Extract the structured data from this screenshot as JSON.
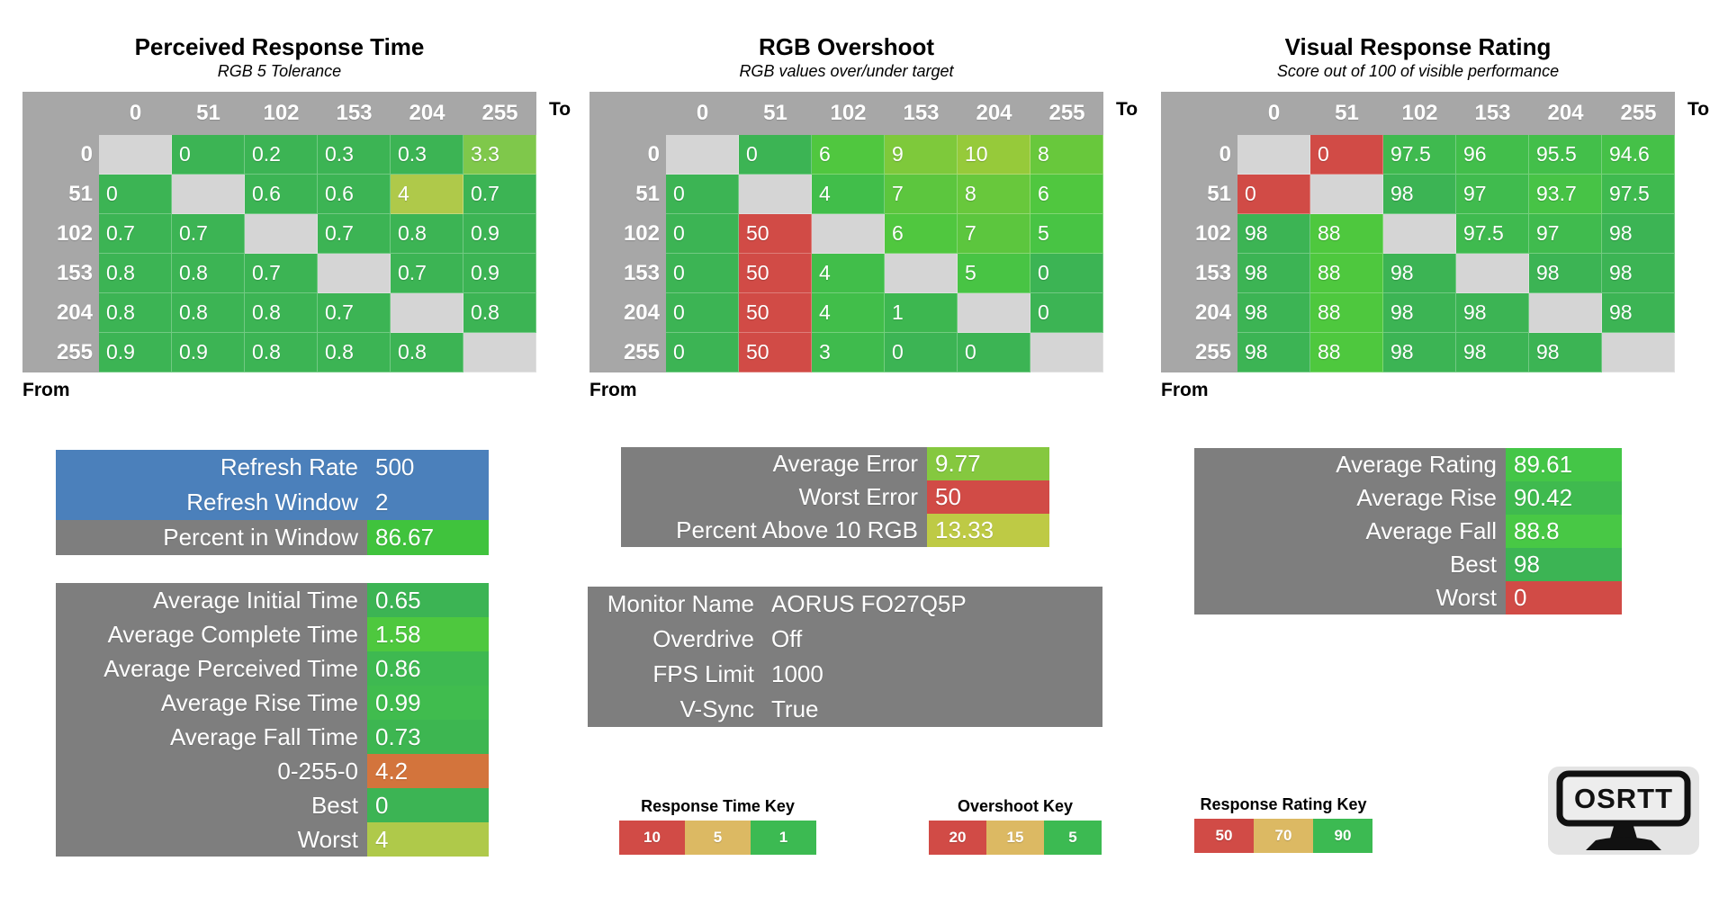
{
  "axis": {
    "to_label": "To",
    "from_label": "From"
  },
  "colors": {
    "header_gray": "#A7A7A7",
    "diagonal_gray": "#D5D5D5",
    "panel_gray": "#7E7E7E",
    "panel_blue": "#4B80BB",
    "green": "#3CB454",
    "red": "#D14B46",
    "orange": "#D3743C",
    "tan": "#DCB963",
    "yellow_green": "#AFC94A"
  },
  "tables": [
    {
      "title": "Perceived Response Time",
      "subtitle": "RGB 5 Tolerance",
      "to_values": [
        "0",
        "51",
        "102",
        "153",
        "204",
        "255"
      ],
      "from_values": [
        "0",
        "51",
        "102",
        "153",
        "204",
        "255"
      ],
      "rows": [
        [
          {
            "v": "",
            "c": "#D5D5D5"
          },
          {
            "v": "0",
            "c": "#3CB454"
          },
          {
            "v": "0.2",
            "c": "#3CB454"
          },
          {
            "v": "0.3",
            "c": "#3CB454"
          },
          {
            "v": "0.3",
            "c": "#3CB454"
          },
          {
            "v": "3.3",
            "c": "#7FC84B"
          }
        ],
        [
          {
            "v": "0",
            "c": "#3CB454"
          },
          {
            "v": "",
            "c": "#D5D5D5"
          },
          {
            "v": "0.6",
            "c": "#3CB454"
          },
          {
            "v": "0.6",
            "c": "#3CB454"
          },
          {
            "v": "4",
            "c": "#AFC94A"
          },
          {
            "v": "0.7",
            "c": "#3CB454"
          }
        ],
        [
          {
            "v": "0.7",
            "c": "#3CB454"
          },
          {
            "v": "0.7",
            "c": "#3CB454"
          },
          {
            "v": "",
            "c": "#D5D5D5"
          },
          {
            "v": "0.7",
            "c": "#3CB454"
          },
          {
            "v": "0.8",
            "c": "#3CB454"
          },
          {
            "v": "0.9",
            "c": "#3CB454"
          }
        ],
        [
          {
            "v": "0.8",
            "c": "#3CB454"
          },
          {
            "v": "0.8",
            "c": "#3CB454"
          },
          {
            "v": "0.7",
            "c": "#3CB454"
          },
          {
            "v": "",
            "c": "#D5D5D5"
          },
          {
            "v": "0.7",
            "c": "#3CB454"
          },
          {
            "v": "0.9",
            "c": "#3CB454"
          }
        ],
        [
          {
            "v": "0.8",
            "c": "#3CB454"
          },
          {
            "v": "0.8",
            "c": "#3CB454"
          },
          {
            "v": "0.8",
            "c": "#3CB454"
          },
          {
            "v": "0.7",
            "c": "#3CB454"
          },
          {
            "v": "",
            "c": "#D5D5D5"
          },
          {
            "v": "0.8",
            "c": "#3CB454"
          }
        ],
        [
          {
            "v": "0.9",
            "c": "#3CB454"
          },
          {
            "v": "0.9",
            "c": "#3CB454"
          },
          {
            "v": "0.8",
            "c": "#3CB454"
          },
          {
            "v": "0.8",
            "c": "#3CB454"
          },
          {
            "v": "0.8",
            "c": "#3CB454"
          },
          {
            "v": "",
            "c": "#D5D5D5"
          }
        ]
      ]
    },
    {
      "title": "RGB Overshoot",
      "subtitle": "RGB values over/under target",
      "to_values": [
        "0",
        "51",
        "102",
        "153",
        "204",
        "255"
      ],
      "from_values": [
        "0",
        "51",
        "102",
        "153",
        "204",
        "255"
      ],
      "rows": [
        [
          {
            "v": "",
            "c": "#D5D5D5"
          },
          {
            "v": "0",
            "c": "#3CB454"
          },
          {
            "v": "6",
            "c": "#50C73F"
          },
          {
            "v": "9",
            "c": "#7EC93B"
          },
          {
            "v": "10",
            "c": "#96CA3A"
          },
          {
            "v": "8",
            "c": "#68C83C"
          }
        ],
        [
          {
            "v": "0",
            "c": "#3CB454"
          },
          {
            "v": "",
            "c": "#D5D5D5"
          },
          {
            "v": "4",
            "c": "#41BE4A"
          },
          {
            "v": "7",
            "c": "#5CC63E"
          },
          {
            "v": "8",
            "c": "#68C83C"
          },
          {
            "v": "6",
            "c": "#50C73F"
          }
        ],
        [
          {
            "v": "0",
            "c": "#3CB454"
          },
          {
            "v": "50",
            "c": "#D14B46"
          },
          {
            "v": "",
            "c": "#D5D5D5"
          },
          {
            "v": "6",
            "c": "#50C73F"
          },
          {
            "v": "7",
            "c": "#5CC63E"
          },
          {
            "v": "5",
            "c": "#48C444"
          }
        ],
        [
          {
            "v": "0",
            "c": "#3CB454"
          },
          {
            "v": "50",
            "c": "#D14B46"
          },
          {
            "v": "4",
            "c": "#41BE4A"
          },
          {
            "v": "",
            "c": "#D5D5D5"
          },
          {
            "v": "5",
            "c": "#48C444"
          },
          {
            "v": "0",
            "c": "#3CB454"
          }
        ],
        [
          {
            "v": "0",
            "c": "#3CB454"
          },
          {
            "v": "50",
            "c": "#D14B46"
          },
          {
            "v": "4",
            "c": "#41BE4A"
          },
          {
            "v": "1",
            "c": "#3DB750"
          },
          {
            "v": "",
            "c": "#D5D5D5"
          },
          {
            "v": "0",
            "c": "#3CB454"
          }
        ],
        [
          {
            "v": "0",
            "c": "#3CB454"
          },
          {
            "v": "50",
            "c": "#D14B46"
          },
          {
            "v": "3",
            "c": "#3FBB4D"
          },
          {
            "v": "0",
            "c": "#3CB454"
          },
          {
            "v": "0",
            "c": "#3CB454"
          },
          {
            "v": "",
            "c": "#D5D5D5"
          }
        ]
      ]
    },
    {
      "title": "Visual Response Rating",
      "subtitle": "Score out of 100 of visible performance",
      "to_values": [
        "0",
        "51",
        "102",
        "153",
        "204",
        "255"
      ],
      "from_values": [
        "0",
        "51",
        "102",
        "153",
        "204",
        "255"
      ],
      "rows": [
        [
          {
            "v": "",
            "c": "#D5D5D5"
          },
          {
            "v": "0",
            "c": "#D14B46"
          },
          {
            "v": "97.5",
            "c": "#3FBA4F"
          },
          {
            "v": "96",
            "c": "#42BE4B"
          },
          {
            "v": "95.5",
            "c": "#43BF4A"
          },
          {
            "v": "94.6",
            "c": "#45C148"
          }
        ],
        [
          {
            "v": "0",
            "c": "#D14B46"
          },
          {
            "v": "",
            "c": "#D5D5D5"
          },
          {
            "v": "98",
            "c": "#3CB454"
          },
          {
            "v": "97",
            "c": "#40BB4E"
          },
          {
            "v": "93.7",
            "c": "#47C346"
          },
          {
            "v": "97.5",
            "c": "#3FBA4F"
          }
        ],
        [
          {
            "v": "98",
            "c": "#3CB454"
          },
          {
            "v": "88",
            "c": "#4EC83E"
          },
          {
            "v": "",
            "c": "#D5D5D5"
          },
          {
            "v": "97.5",
            "c": "#3FBA4F"
          },
          {
            "v": "97",
            "c": "#40BB4E"
          },
          {
            "v": "98",
            "c": "#3CB454"
          }
        ],
        [
          {
            "v": "98",
            "c": "#3CB454"
          },
          {
            "v": "88",
            "c": "#4EC83E"
          },
          {
            "v": "98",
            "c": "#3CB454"
          },
          {
            "v": "",
            "c": "#D5D5D5"
          },
          {
            "v": "98",
            "c": "#3CB454"
          },
          {
            "v": "98",
            "c": "#3CB454"
          }
        ],
        [
          {
            "v": "98",
            "c": "#3CB454"
          },
          {
            "v": "88",
            "c": "#4EC83E"
          },
          {
            "v": "98",
            "c": "#3CB454"
          },
          {
            "v": "98",
            "c": "#3CB454"
          },
          {
            "v": "",
            "c": "#D5D5D5"
          },
          {
            "v": "98",
            "c": "#3CB454"
          }
        ],
        [
          {
            "v": "98",
            "c": "#3CB454"
          },
          {
            "v": "88",
            "c": "#4EC83E"
          },
          {
            "v": "98",
            "c": "#3CB454"
          },
          {
            "v": "98",
            "c": "#3CB454"
          },
          {
            "v": "98",
            "c": "#3CB454"
          },
          {
            "v": "",
            "c": "#D5D5D5"
          }
        ]
      ]
    }
  ],
  "panels": {
    "refresh": {
      "rows": [
        {
          "label": "Refresh Rate",
          "value": "500",
          "label_bg": "#4B80BB",
          "value_bg": "#4B80BB"
        },
        {
          "label": "Refresh Window",
          "value": "2",
          "label_bg": "#4B80BB",
          "value_bg": "#4B80BB"
        },
        {
          "label": "Percent in Window",
          "value": "86.67",
          "label_bg": "#7E7E7E",
          "value_bg": "#40C33D"
        }
      ]
    },
    "times": {
      "rows": [
        {
          "label": "Average Initial Time",
          "value": "0.65",
          "label_bg": "#7E7E7E",
          "value_bg": "#3CB454"
        },
        {
          "label": "Average Complete Time",
          "value": "1.58",
          "label_bg": "#7E7E7E",
          "value_bg": "#4EC83E"
        },
        {
          "label": "Average Perceived Time",
          "value": "0.86",
          "label_bg": "#7E7E7E",
          "value_bg": "#3EB951"
        },
        {
          "label": "Average Rise Time",
          "value": "0.99",
          "label_bg": "#7E7E7E",
          "value_bg": "#40BC4E"
        },
        {
          "label": "Average Fall Time",
          "value": "0.73",
          "label_bg": "#7E7E7E",
          "value_bg": "#3DB651"
        },
        {
          "label": "0-255-0",
          "value": "4.2",
          "label_bg": "#7E7E7E",
          "value_bg": "#D3743C"
        },
        {
          "label": "Best",
          "value": "0",
          "label_bg": "#7E7E7E",
          "value_bg": "#3CB454"
        },
        {
          "label": "Worst",
          "value": "4",
          "label_bg": "#7E7E7E",
          "value_bg": "#AFC94A"
        }
      ]
    },
    "errors": {
      "rows": [
        {
          "label": "Average Error",
          "value": "9.77",
          "label_bg": "#7E7E7E",
          "value_bg": "#85C83F"
        },
        {
          "label": "Worst Error",
          "value": "50",
          "label_bg": "#7E7E7E",
          "value_bg": "#D14B46"
        },
        {
          "label": "Percent Above 10 RGB",
          "value": "13.33",
          "label_bg": "#7E7E7E",
          "value_bg": "#BECA45"
        }
      ]
    },
    "monitor": {
      "rows": [
        {
          "label": "Monitor Name",
          "value": "AORUS FO27Q5P",
          "label_bg": "#7E7E7E",
          "value_bg": "#7E7E7E"
        },
        {
          "label": "Overdrive",
          "value": "Off",
          "label_bg": "#7E7E7E",
          "value_bg": "#7E7E7E"
        },
        {
          "label": "FPS Limit",
          "value": "1000",
          "label_bg": "#7E7E7E",
          "value_bg": "#7E7E7E"
        },
        {
          "label": "V-Sync",
          "value": "True",
          "label_bg": "#7E7E7E",
          "value_bg": "#7E7E7E"
        }
      ]
    },
    "ratings": {
      "rows": [
        {
          "label": "Average Rating",
          "value": "89.61",
          "label_bg": "#7E7E7E",
          "value_bg": "#44C647"
        },
        {
          "label": "Average Rise",
          "value": "90.42",
          "label_bg": "#7E7E7E",
          "value_bg": "#3FBA4F"
        },
        {
          "label": "Average Fall",
          "value": "88.8",
          "label_bg": "#7E7E7E",
          "value_bg": "#48C845"
        },
        {
          "label": "Best",
          "value": "98",
          "label_bg": "#7E7E7E",
          "value_bg": "#3CB454"
        },
        {
          "label": "Worst",
          "value": "0",
          "label_bg": "#7E7E7E",
          "value_bg": "#D14B46"
        }
      ]
    }
  },
  "keys": [
    {
      "title": "Response Time Key",
      "cells": [
        {
          "v": "10",
          "c": "#D14B46"
        },
        {
          "v": "5",
          "c": "#DCB963"
        },
        {
          "v": "1",
          "c": "#3CBA52"
        }
      ]
    },
    {
      "title": "Overshoot Key",
      "cells": [
        {
          "v": "20",
          "c": "#D14B46"
        },
        {
          "v": "15",
          "c": "#DCB963"
        },
        {
          "v": "5",
          "c": "#3CBA52"
        }
      ]
    },
    {
      "title": "Response Rating Key",
      "cells": [
        {
          "v": "50",
          "c": "#D14B46"
        },
        {
          "v": "70",
          "c": "#DCB963"
        },
        {
          "v": "90",
          "c": "#3CBA52"
        }
      ]
    }
  ],
  "logo": {
    "text": "OSRTT"
  },
  "chart_data": [
    {
      "type": "heatmap",
      "title": "Perceived Response Time",
      "subtitle": "RGB 5 Tolerance",
      "xlabel": "To",
      "ylabel": "From",
      "x": [
        0,
        51,
        102,
        153,
        204,
        255
      ],
      "y": [
        0,
        51,
        102,
        153,
        204,
        255
      ],
      "values": [
        [
          null,
          0,
          0.2,
          0.3,
          0.3,
          3.3
        ],
        [
          0,
          null,
          0.6,
          0.6,
          4,
          0.7
        ],
        [
          0.7,
          0.7,
          null,
          0.7,
          0.8,
          0.9
        ],
        [
          0.8,
          0.8,
          0.7,
          null,
          0.7,
          0.9
        ],
        [
          0.8,
          0.8,
          0.8,
          0.7,
          null,
          0.8
        ],
        [
          0.9,
          0.9,
          0.8,
          0.8,
          0.8,
          null
        ]
      ],
      "color_key_thresholds": {
        "red": 10,
        "yellow": 5,
        "green": 1
      }
    },
    {
      "type": "heatmap",
      "title": "RGB Overshoot",
      "subtitle": "RGB values over/under target",
      "xlabel": "To",
      "ylabel": "From",
      "x": [
        0,
        51,
        102,
        153,
        204,
        255
      ],
      "y": [
        0,
        51,
        102,
        153,
        204,
        255
      ],
      "values": [
        [
          null,
          0,
          6,
          9,
          10,
          8
        ],
        [
          0,
          null,
          4,
          7,
          8,
          6
        ],
        [
          0,
          50,
          null,
          6,
          7,
          5
        ],
        [
          0,
          50,
          4,
          null,
          5,
          0
        ],
        [
          0,
          50,
          4,
          1,
          null,
          0
        ],
        [
          0,
          50,
          3,
          0,
          0,
          null
        ]
      ],
      "color_key_thresholds": {
        "red": 20,
        "yellow": 15,
        "green": 5
      }
    },
    {
      "type": "heatmap",
      "title": "Visual Response Rating",
      "subtitle": "Score out of 100 of visible performance",
      "xlabel": "To",
      "ylabel": "From",
      "x": [
        0,
        51,
        102,
        153,
        204,
        255
      ],
      "y": [
        0,
        51,
        102,
        153,
        204,
        255
      ],
      "values": [
        [
          null,
          0,
          97.5,
          96,
          95.5,
          94.6
        ],
        [
          0,
          null,
          98,
          97,
          93.7,
          97.5
        ],
        [
          98,
          88,
          null,
          97.5,
          97,
          98
        ],
        [
          98,
          88,
          98,
          null,
          98,
          98
        ],
        [
          98,
          88,
          98,
          98,
          null,
          98
        ],
        [
          98,
          88,
          98,
          98,
          98,
          null
        ]
      ],
      "color_key_thresholds": {
        "red": 50,
        "yellow": 70,
        "green": 90
      }
    },
    {
      "type": "table",
      "title": "Summary metrics",
      "values": {
        "Refresh Rate": 500,
        "Refresh Window": 2,
        "Percent in Window": 86.67,
        "Average Initial Time": 0.65,
        "Average Complete Time": 1.58,
        "Average Perceived Time": 0.86,
        "Average Rise Time": 0.99,
        "Average Fall Time": 0.73,
        "0-255-0": 4.2,
        "Best Time": 0,
        "Worst Time": 4,
        "Average Error": 9.77,
        "Worst Error": 50,
        "Percent Above 10 RGB": 13.33,
        "Monitor Name": "AORUS FO27Q5P",
        "Overdrive": "Off",
        "FPS Limit": 1000,
        "V-Sync": "True",
        "Average Rating": 89.61,
        "Average Rise": 90.42,
        "Average Fall": 88.8,
        "Best Rating": 98,
        "Worst Rating": 0
      }
    }
  ]
}
